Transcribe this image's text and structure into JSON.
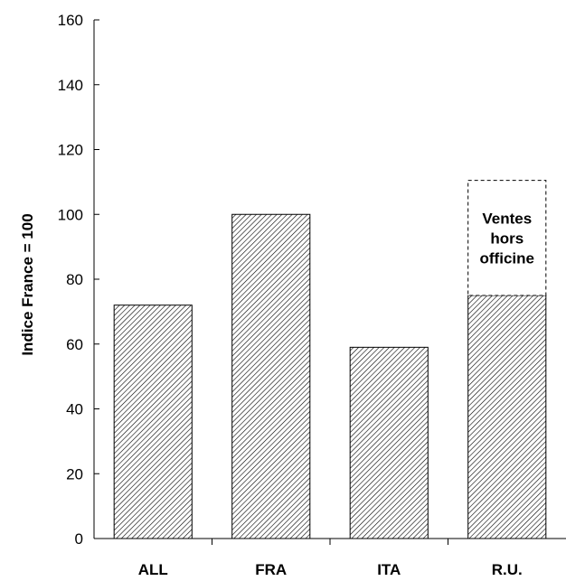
{
  "chart_data": {
    "type": "bar",
    "title": "",
    "xlabel": "",
    "ylabel": "Indice France = 100",
    "ylim": [
      0,
      160
    ],
    "yticks": [
      0,
      20,
      40,
      60,
      80,
      100,
      120,
      140,
      160
    ],
    "categories": [
      "ALL",
      "FRA",
      "ITA",
      "R.U."
    ],
    "series": [
      {
        "values": [
          72,
          100,
          59,
          75
        ],
        "pattern": "diagonal-hatch",
        "border": "solid"
      },
      {
        "values": [
          0,
          0,
          0,
          35.5
        ],
        "pattern": "none",
        "border": "dashed"
      }
    ],
    "annotation": {
      "category": "R.U.",
      "lines": [
        "Ventes",
        "hors",
        "officine"
      ]
    },
    "grid": false,
    "legend": "none",
    "colors": {
      "bar_fill": "#ffffff",
      "hatch": "#000000",
      "axis": "#000000"
    }
  }
}
